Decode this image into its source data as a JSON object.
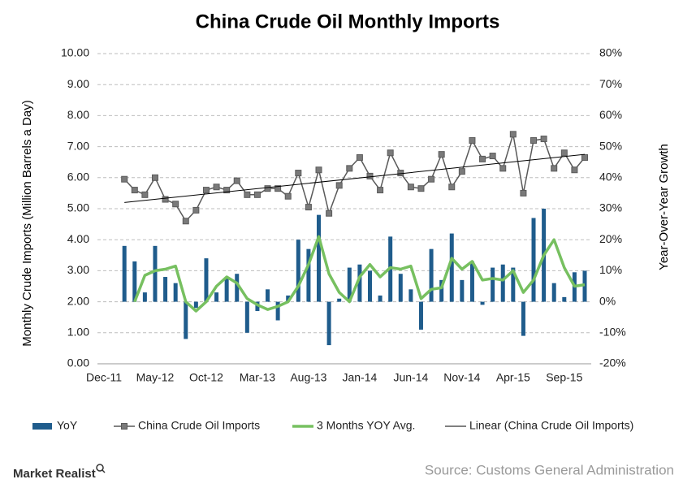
{
  "chart_data": {
    "type": "combo",
    "title": "China Crude Oil Monthly Imports",
    "y_label": "Monthly Crude Imports (Million Barrels a Day)",
    "y2_label": "Year-Over-Year  Growth",
    "source": "Source: Customs General Administration",
    "brand": "Market Realist",
    "categories": [
      "Dec-11",
      null,
      null,
      null,
      null,
      "May-12",
      null,
      null,
      null,
      null,
      "Oct-12",
      null,
      null,
      null,
      null,
      "Mar-13",
      null,
      null,
      null,
      null,
      "Aug-13",
      null,
      null,
      null,
      null,
      "Jan-14",
      null,
      null,
      null,
      null,
      "Jun-14",
      null,
      null,
      null,
      null,
      "Nov-14",
      null,
      null,
      null,
      null,
      "Apr-15",
      null,
      null,
      null,
      null,
      "Sep-15",
      null,
      null
    ],
    "ylim": [
      0,
      10
    ],
    "yticks": [
      {
        "value": 0,
        "label": "0.00"
      },
      {
        "value": 1,
        "label": "1.00"
      },
      {
        "value": 2,
        "label": "2.00"
      },
      {
        "value": 3,
        "label": "3.00"
      },
      {
        "value": 4,
        "label": "4.00"
      },
      {
        "value": 5,
        "label": "5.00"
      },
      {
        "value": 6,
        "label": "6.00"
      },
      {
        "value": 7,
        "label": "7.00"
      },
      {
        "value": 8,
        "label": "8.00"
      },
      {
        "value": 9,
        "label": "9.00"
      },
      {
        "value": 10,
        "label": "10.00"
      }
    ],
    "y2lim": [
      -20,
      80
    ],
    "y2ticks": [
      {
        "value": -20,
        "label": "-20%"
      },
      {
        "value": -10,
        "label": "-10%"
      },
      {
        "value": 0,
        "label": "0%"
      },
      {
        "value": 10,
        "label": "10%"
      },
      {
        "value": 20,
        "label": "20%"
      },
      {
        "value": 30,
        "label": "30%"
      },
      {
        "value": 40,
        "label": "40%"
      },
      {
        "value": 50,
        "label": "50%"
      },
      {
        "value": 60,
        "label": "60%"
      },
      {
        "value": 70,
        "label": "70%"
      },
      {
        "value": 80,
        "label": "80%"
      }
    ],
    "grid": true,
    "legend": "bottom",
    "series": [
      {
        "name": "YoY",
        "type": "bar",
        "axis": "y2",
        "color": "#1f5c8c",
        "values": [
          null,
          null,
          18,
          13,
          3,
          18,
          8,
          6,
          -12,
          -2,
          14,
          3,
          8,
          9,
          -10,
          -3,
          4,
          -6,
          2,
          20,
          17,
          28,
          -14,
          1,
          11,
          12,
          10,
          2,
          21,
          9,
          4,
          -9,
          17,
          7,
          22,
          7,
          13,
          -1,
          11,
          12,
          11,
          -11,
          27,
          30,
          6,
          1.5,
          9.5,
          10
        ]
      },
      {
        "name": "China Crude Oil Imports",
        "type": "line",
        "marker": "square",
        "color": "#595959",
        "values": [
          null,
          null,
          5.95,
          5.6,
          5.45,
          6.0,
          5.3,
          5.15,
          4.6,
          4.95,
          5.6,
          5.7,
          5.6,
          5.9,
          5.45,
          5.45,
          5.65,
          5.65,
          5.4,
          6.15,
          5.05,
          6.25,
          4.85,
          5.75,
          6.3,
          6.65,
          6.05,
          5.6,
          6.8,
          6.15,
          5.7,
          5.65,
          5.95,
          6.75,
          5.7,
          6.2,
          7.2,
          6.6,
          6.7,
          6.3,
          7.4,
          5.5,
          7.2,
          7.25,
          6.3,
          6.8,
          6.25,
          6.65
        ]
      },
      {
        "name": "3 Months YOY Avg.",
        "type": "line",
        "axis": "y2",
        "color": "#77c060",
        "values": [
          null,
          null,
          null,
          0,
          8.5,
          10,
          10.5,
          11.5,
          0,
          -3,
          0,
          5,
          8,
          6,
          1,
          -1,
          -2.5,
          -1.5,
          0,
          5,
          12,
          21,
          9,
          3,
          0,
          8,
          12,
          8,
          11,
          10.5,
          11.5,
          1,
          4,
          4.5,
          14,
          10.5,
          13,
          7,
          7.5,
          7,
          10,
          3,
          7,
          15,
          20,
          11,
          5,
          5.5
        ]
      },
      {
        "name": "Linear (China Crude Oil Imports)",
        "type": "trendline",
        "color": "#000000",
        "values": [
          null,
          null,
          5.2,
          null,
          null,
          null,
          null,
          null,
          null,
          null,
          null,
          null,
          null,
          null,
          null,
          null,
          null,
          null,
          null,
          null,
          null,
          null,
          null,
          null,
          null,
          null,
          null,
          null,
          null,
          null,
          null,
          null,
          null,
          null,
          null,
          null,
          null,
          null,
          null,
          null,
          null,
          null,
          null,
          null,
          null,
          null,
          null,
          6.75
        ]
      }
    ]
  }
}
